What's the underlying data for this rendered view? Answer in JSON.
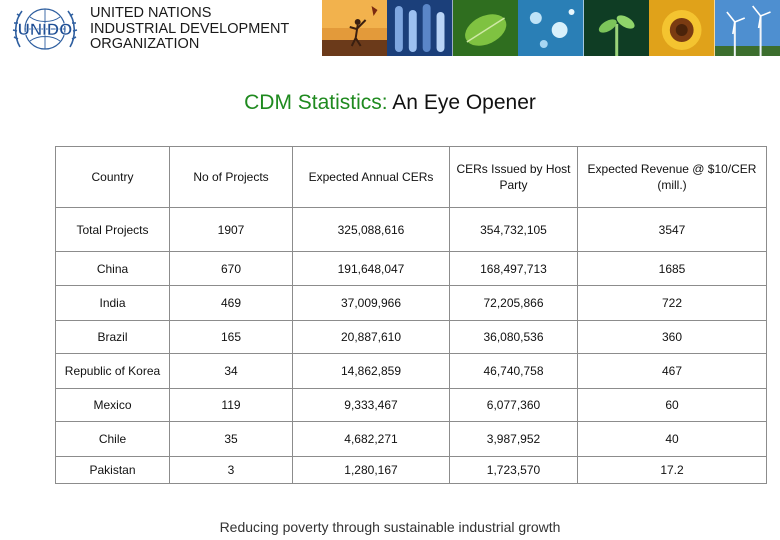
{
  "header": {
    "logo_text": "UNIDO",
    "org_lines": [
      "UNITED NATIONS",
      "INDUSTRIAL DEVELOPMENT",
      "ORGANIZATION"
    ],
    "photo_strip": [
      "kite-photo-icon",
      "test-tubes-photo-icon",
      "leaf-photo-icon",
      "water-drops-photo-icon",
      "plant-photo-icon",
      "sunflower-photo-icon",
      "wind-turbines-photo-icon"
    ]
  },
  "title": {
    "part1": "CDM Statistics:",
    "part2": " An Eye Opener"
  },
  "table": {
    "columns": [
      "Country",
      "No of Projects",
      "Expected Annual CERs",
      "CERs Issued by Host Party",
      "Expected Revenue @ $10/CER (mill.)"
    ],
    "rows": [
      [
        "Total Projects",
        "1907",
        "325,088,616",
        "354,732,105",
        "3547"
      ],
      [
        "China",
        "670",
        "191,648,047",
        "168,497,713",
        "1685"
      ],
      [
        "India",
        "469",
        "37,009,966",
        "72,205,866",
        "722"
      ],
      [
        "Brazil",
        "165",
        "20,887,610",
        "36,080,536",
        "360"
      ],
      [
        "Republic of Korea",
        "34",
        "14,862,859",
        "46,740,758",
        "467"
      ],
      [
        "Mexico",
        "119",
        "9,333,467",
        "6,077,360",
        "60"
      ],
      [
        "Chile",
        "35",
        "4,682,271",
        "3,987,952",
        "40"
      ],
      [
        "Pakistan",
        "3",
        "1,280,167",
        "1,723,570",
        "17.2"
      ]
    ]
  },
  "footer": {
    "text": "Reducing poverty through sustainable industrial growth"
  },
  "colors": {
    "title_green": "#1f8a1f",
    "logo_blue": "#2f5fa0",
    "border": "#8c8c8c"
  }
}
